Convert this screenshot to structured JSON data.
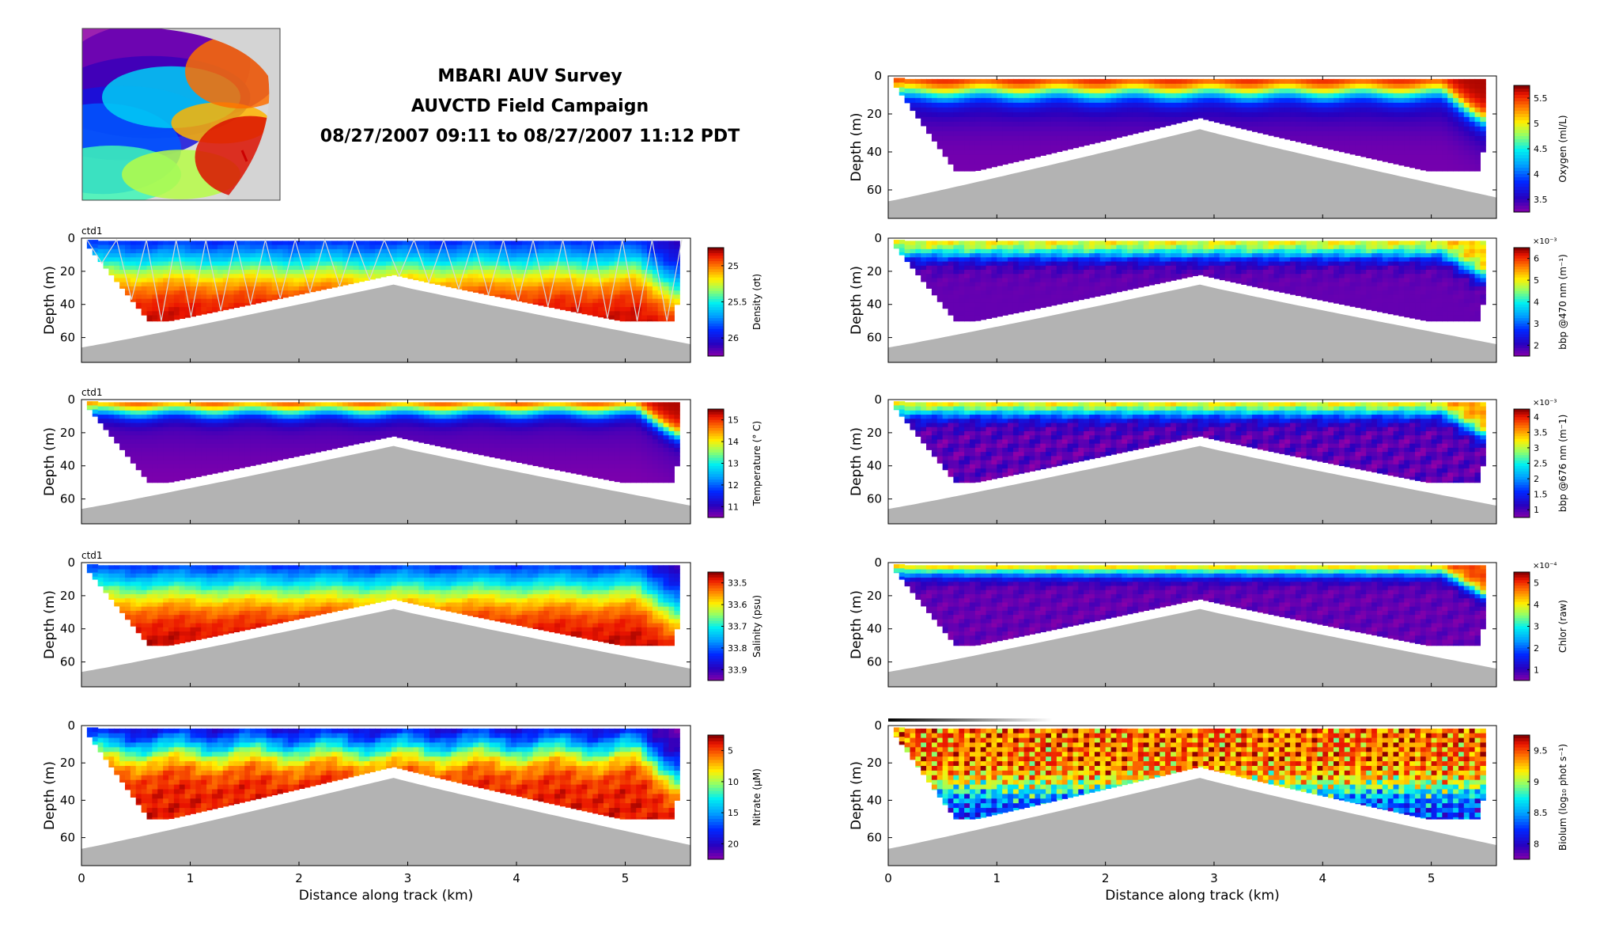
{
  "title": {
    "line1": "MBARI AUV Survey",
    "line2": "AUVCTD Field Campaign",
    "line3": "08/27/2007 09:11 to 08/27/2007 11:12 PDT"
  },
  "map": {
    "name": "survey-location-map"
  },
  "colors": {
    "bathymetry": "#b3b3b3",
    "gap": "#ffffff",
    "track": "#666666"
  },
  "common": {
    "xlabel": "Distance along track (km)",
    "ylabel": "Depth (m)",
    "x_ticks": [
      "0",
      "1",
      "2",
      "3",
      "4",
      "5"
    ],
    "y_ticks": [
      "0",
      "20",
      "40",
      "60"
    ],
    "xlim": [
      0,
      5.6
    ],
    "ylim": [
      0,
      75
    ]
  },
  "chart_data": [
    {
      "type": "heatmap",
      "id": "density",
      "col": "left",
      "label": "ctd1",
      "cbar_label": "Density (σt)",
      "cbar_ticks": [
        "25",
        "25.5",
        "26"
      ],
      "colormap": "jet",
      "field": "density",
      "track": true,
      "show_xlabel": false
    },
    {
      "type": "heatmap",
      "id": "temperature",
      "col": "left",
      "label": "ctd1",
      "cbar_label": "Temperature (° C)",
      "cbar_ticks": [
        "15",
        "14",
        "13",
        "12",
        "11"
      ],
      "colormap": "jet",
      "field": "temperature",
      "track": false,
      "show_xlabel": false
    },
    {
      "type": "heatmap",
      "id": "salinity",
      "col": "left",
      "label": "ctd1",
      "cbar_label": "Salinity (psu)",
      "cbar_ticks": [
        "33.5",
        "33.6",
        "33.7",
        "33.8",
        "33.9"
      ],
      "colormap": "jet",
      "field": "salinity",
      "track": false,
      "show_xlabel": false
    },
    {
      "type": "heatmap",
      "id": "nitrate",
      "col": "left",
      "label": "",
      "cbar_label": "Nitrate (µM)",
      "cbar_ticks": [
        "5",
        "10",
        "15",
        "20"
      ],
      "colormap": "jet",
      "field": "nitrate",
      "track": false,
      "show_xlabel": true
    },
    {
      "type": "heatmap",
      "id": "oxygen",
      "col": "right",
      "label": "",
      "cbar_label": "Oxygen (ml/L)",
      "cbar_ticks": [
        "5.5",
        "5",
        "4.5",
        "4",
        "3.5"
      ],
      "colormap": "jet",
      "field": "oxygen",
      "track": false,
      "show_xlabel": false
    },
    {
      "type": "heatmap",
      "id": "bbp470",
      "col": "right",
      "label": "",
      "cbar_label": "bbp @470 nm (m⁻¹)",
      "cbar_exponent": "×10⁻³",
      "cbar_ticks": [
        "6",
        "5",
        "4",
        "3",
        "2"
      ],
      "colormap": "jet",
      "field": "bbp470",
      "track": false,
      "show_xlabel": false
    },
    {
      "type": "heatmap",
      "id": "bbp676",
      "col": "right",
      "label": "",
      "cbar_label": "bbp @676 nm (m⁻1)",
      "cbar_exponent": "×10⁻³",
      "cbar_ticks": [
        "4",
        "3.5",
        "3",
        "2.5",
        "2",
        "1.5",
        "1"
      ],
      "colormap": "jet",
      "field": "bbp676",
      "track": false,
      "show_xlabel": false
    },
    {
      "type": "heatmap",
      "id": "chlor",
      "col": "right",
      "label": "",
      "cbar_label": "Chlor (raw)",
      "cbar_exponent": "×10⁻⁴",
      "cbar_ticks": [
        "5",
        "4",
        "3",
        "2",
        "1"
      ],
      "colormap": "jet",
      "field": "chlor",
      "track": false,
      "show_xlabel": false
    },
    {
      "type": "heatmap",
      "id": "biolum",
      "col": "right",
      "label": "",
      "cbar_label": "Biolum (log₁₀ phot s⁻¹)",
      "cbar_ticks": [
        "9.5",
        "9",
        "8.5",
        "8"
      ],
      "colormap": "jet",
      "field": "biolum",
      "track": false,
      "show_xlabel": true
    }
  ]
}
